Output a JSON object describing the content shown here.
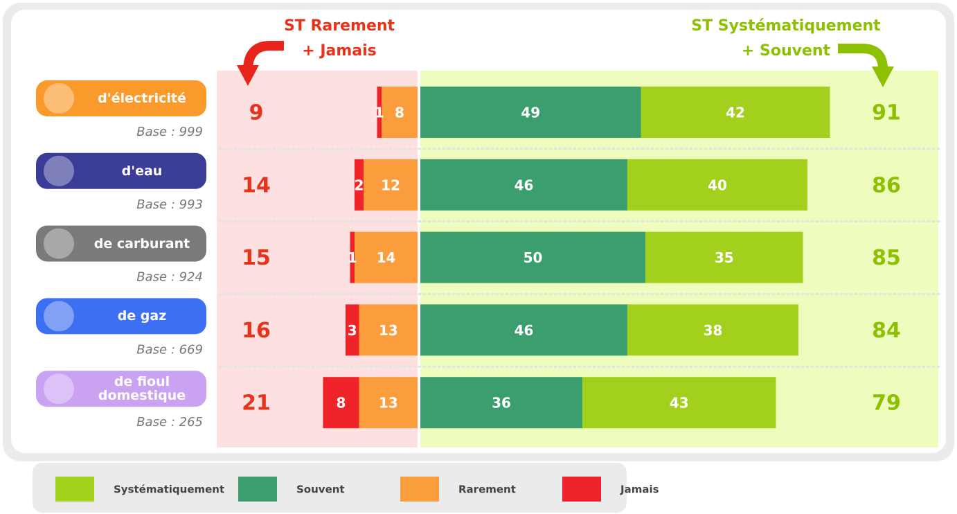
{
  "chart_data": {
    "type": "diverging-bar",
    "categories": [
      "d'électricité",
      "d'eau",
      "de carburant",
      "de gaz",
      "de fioul domestique"
    ],
    "category_colors": [
      "#fb9a2c",
      "#3b3b98",
      "#7a7a7a",
      "#3d6ff2",
      "#c9a2f2"
    ],
    "bases": [
      "Base : 999",
      "Base : 993",
      "Base : 924",
      "Base : 669",
      "Base : 265"
    ],
    "series": [
      {
        "name": "Systématiquement",
        "color": "#a3d01c",
        "side": "right",
        "values": [
          42,
          40,
          35,
          38,
          43
        ]
      },
      {
        "name": "Souvent",
        "color": "#3a9e6e",
        "side": "right",
        "values": [
          49,
          46,
          50,
          46,
          36
        ]
      },
      {
        "name": "Rarement",
        "color": "#fb9d3c",
        "side": "left",
        "values": [
          8,
          12,
          14,
          13,
          13
        ]
      },
      {
        "name": "Jamais",
        "color": "#f0222a",
        "side": "left",
        "values": [
          1,
          2,
          1,
          3,
          8
        ]
      }
    ],
    "totals": [
      {
        "name": [
          "ST Rarement",
          "+ Jamais"
        ],
        "color": "#e8331c",
        "side": "left",
        "values": [
          9,
          14,
          15,
          16,
          21
        ]
      },
      {
        "name": [
          "ST Systématiquement",
          "+ Souvent"
        ],
        "color": "#8cc000",
        "side": "right",
        "values": [
          91,
          86,
          85,
          84,
          79
        ]
      }
    ]
  }
}
